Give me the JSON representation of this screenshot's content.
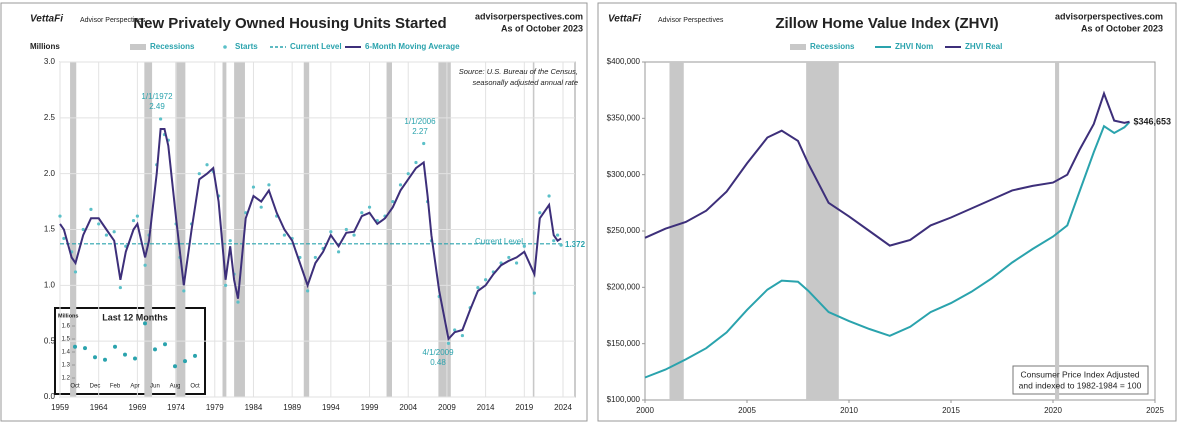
{
  "chart_data": [
    {
      "type": "line",
      "title": "New Privately Owned Housing Units Started",
      "brand": "VettaFi",
      "brand_sub": "Advisor Perspectives",
      "site": "advisorperspectives.com",
      "as_of": "As of October 2023",
      "y_label": "Millions",
      "notes": [
        "Source: U.S. Bureau of the Census,",
        "seasonally adjusted annual rate"
      ],
      "recession_label": "Recessions",
      "recession_color": "#c8c8c8",
      "recessions": [
        [
          1960.3,
          1961.1
        ],
        [
          1969.9,
          1970.9
        ],
        [
          1973.9,
          1975.2
        ],
        [
          1980.0,
          1980.5
        ],
        [
          1981.5,
          1982.9
        ],
        [
          1990.5,
          1991.2
        ],
        [
          2001.2,
          2001.9
        ],
        [
          2007.9,
          2009.5
        ],
        [
          2020.1,
          2020.3
        ]
      ],
      "xlim": [
        1959,
        2024
      ],
      "xticks": [
        1959,
        1964,
        1969,
        1974,
        1979,
        1984,
        1989,
        1994,
        1999,
        2004,
        2009,
        2014,
        2019,
        2024
      ],
      "ylim": [
        0,
        3
      ],
      "yticks": [
        {
          "value": 0,
          "label": "0.0"
        },
        0.5,
        {
          "value": 1,
          "label": "1.0"
        },
        1.5,
        {
          "value": 2,
          "label": "2.0"
        },
        2.5,
        {
          "value": 3,
          "label": "3.0"
        }
      ],
      "grid": true,
      "x": [
        1959,
        1959.5,
        1960.5,
        1961,
        1962,
        1963,
        1964,
        1965,
        1966,
        1966.8,
        1967.5,
        1968.5,
        1969,
        1970,
        1970.5,
        1971.5,
        1972,
        1972.5,
        1973,
        1974,
        1974.5,
        1975,
        1976,
        1977,
        1978,
        1978.8,
        1979.5,
        1980.4,
        1981,
        1981.5,
        1982,
        1983,
        1984,
        1985,
        1986,
        1987,
        1988,
        1989,
        1990,
        1991,
        1992,
        1993,
        1994,
        1995,
        1996,
        1997,
        1998,
        1999,
        2000,
        2001,
        2002,
        2003,
        2004,
        2005,
        2006,
        2006.5,
        2007,
        2008,
        2009.2,
        2010,
        2011,
        2012,
        2013,
        2014,
        2015,
        2016,
        2017,
        2018,
        2019,
        2020.3,
        2021,
        2022.2,
        2022.8,
        2023.3,
        2023.75
      ],
      "series": [
        {
          "name": "Starts",
          "style": "dots",
          "color": "#5bc0c8",
          "values": [
            1.62,
            1.42,
            1.3,
            1.12,
            1.5,
            1.68,
            1.55,
            1.45,
            1.48,
            0.98,
            1.35,
            1.58,
            1.62,
            1.18,
            1.45,
            2.08,
            2.49,
            2.35,
            2.3,
            1.55,
            1.25,
            0.95,
            1.55,
            2.0,
            2.08,
            2.02,
            1.8,
            1.0,
            1.4,
            1.1,
            0.85,
            1.65,
            1.88,
            1.7,
            1.9,
            1.62,
            1.45,
            1.42,
            1.25,
            0.95,
            1.25,
            1.33,
            1.48,
            1.3,
            1.5,
            1.45,
            1.65,
            1.7,
            1.58,
            1.62,
            1.75,
            1.9,
            2.0,
            2.1,
            2.27,
            1.75,
            1.4,
            0.9,
            0.48,
            0.6,
            0.55,
            0.8,
            0.98,
            1.05,
            1.12,
            1.2,
            1.25,
            1.2,
            1.35,
            0.93,
            1.65,
            1.8,
            1.4,
            1.45,
            1.36
          ]
        },
        {
          "name": "6-Month Moving Average",
          "style": "line",
          "color": "#3d2f7a",
          "values": [
            1.55,
            1.5,
            1.25,
            1.2,
            1.45,
            1.6,
            1.6,
            1.5,
            1.4,
            1.05,
            1.3,
            1.5,
            1.55,
            1.25,
            1.4,
            2.0,
            2.4,
            2.4,
            2.25,
            1.6,
            1.3,
            1.0,
            1.5,
            1.95,
            2.0,
            2.05,
            1.75,
            1.05,
            1.35,
            1.05,
            0.88,
            1.6,
            1.8,
            1.75,
            1.85,
            1.65,
            1.5,
            1.4,
            1.2,
            1.0,
            1.2,
            1.3,
            1.45,
            1.35,
            1.47,
            1.48,
            1.62,
            1.65,
            1.55,
            1.6,
            1.7,
            1.85,
            1.95,
            2.05,
            2.1,
            1.8,
            1.45,
            0.95,
            0.52,
            0.58,
            0.6,
            0.78,
            0.95,
            1.0,
            1.1,
            1.18,
            1.22,
            1.25,
            1.3,
            1.1,
            1.6,
            1.72,
            1.45,
            1.4,
            1.42
          ]
        }
      ],
      "current_level": {
        "name": "Current Level",
        "value": 1.372,
        "color": "#2aa3ad"
      },
      "annotations": [
        {
          "date": "1/1/1972",
          "value": 2.49
        },
        {
          "date": "1/1/2006",
          "value": 2.27
        },
        {
          "date": "4/1/2009",
          "value": 0.48
        }
      ]
    },
    {
      "type": "dot",
      "title": "Last 12 Months",
      "y_label": "Millions",
      "color": "#2aa3ad",
      "categories": [
        "Oct",
        null,
        "Dec",
        null,
        "Feb",
        null,
        "Apr",
        null,
        "Jun",
        null,
        "Aug",
        null,
        "Oct"
      ],
      "values": [
        1.44,
        1.43,
        1.36,
        1.34,
        1.44,
        1.38,
        1.35,
        1.62,
        1.42,
        1.46,
        1.29,
        1.33,
        1.37
      ],
      "ylim": [
        1.2,
        1.6
      ],
      "yticks": [
        1.2,
        1.3,
        1.4,
        1.5,
        1.6
      ]
    },
    {
      "type": "line",
      "title": "Zillow Home Value Index (ZHVI)",
      "brand": "VettaFi",
      "brand_sub": "Advisor Perspectives",
      "site": "advisorperspectives.com",
      "as_of": "As of October 2023",
      "notes": [
        "Consumer Price Index Adjusted",
        "and indexed to 1982-1984 = 100"
      ],
      "recession_label": "Recessions",
      "recession_color": "#c8c8c8",
      "recessions": [
        [
          2001.2,
          2001.9
        ],
        [
          2007.9,
          2009.5
        ],
        [
          2020.1,
          2020.3
        ]
      ],
      "xlim": [
        2000,
        2025
      ],
      "xticks": [
        2000,
        2005,
        2010,
        2015,
        2020,
        2025
      ],
      "ylim": [
        100000,
        400000
      ],
      "yticks": [
        {
          "value": 100000,
          "label": "$100,000"
        },
        {
          "value": 150000,
          "label": "$150,000"
        },
        {
          "value": 200000,
          "label": "$200,000"
        },
        {
          "value": 250000,
          "label": "$250,000"
        },
        {
          "value": 300000,
          "label": "$300,000"
        },
        {
          "value": 350000,
          "label": "$350,000"
        },
        {
          "value": 400000,
          "label": "$400,000"
        }
      ],
      "grid": false,
      "x": [
        2000,
        2001,
        2002,
        2003,
        2004,
        2005,
        2006,
        2006.7,
        2007.5,
        2008,
        2009,
        2010,
        2011,
        2012,
        2013,
        2014,
        2015,
        2016,
        2017,
        2018,
        2019,
        2020,
        2020.7,
        2021.3,
        2022,
        2022.5,
        2023,
        2023.5,
        2023.75
      ],
      "series": [
        {
          "name": "ZHVI Nom",
          "style": "line",
          "color": "#2aa3ad",
          "values": [
            120000,
            127000,
            136000,
            146000,
            160000,
            180000,
            198000,
            206000,
            205000,
            197000,
            178000,
            170000,
            163000,
            157000,
            165000,
            178000,
            186000,
            196000,
            208000,
            222000,
            234000,
            245000,
            255000,
            285000,
            320000,
            343000,
            337000,
            342000,
            346653
          ]
        },
        {
          "name": "ZHVI Real",
          "style": "line",
          "color": "#3d2f7a",
          "values": [
            244000,
            252000,
            258000,
            268000,
            285000,
            310000,
            333000,
            339000,
            330000,
            310000,
            275000,
            263000,
            250000,
            237000,
            242000,
            255000,
            262000,
            270000,
            278000,
            286000,
            290000,
            293000,
            300000,
            322000,
            345000,
            372000,
            348000,
            346000,
            347000
          ]
        }
      ],
      "annotations": [
        {
          "label": "$346,653",
          "value": 346653
        }
      ]
    }
  ]
}
